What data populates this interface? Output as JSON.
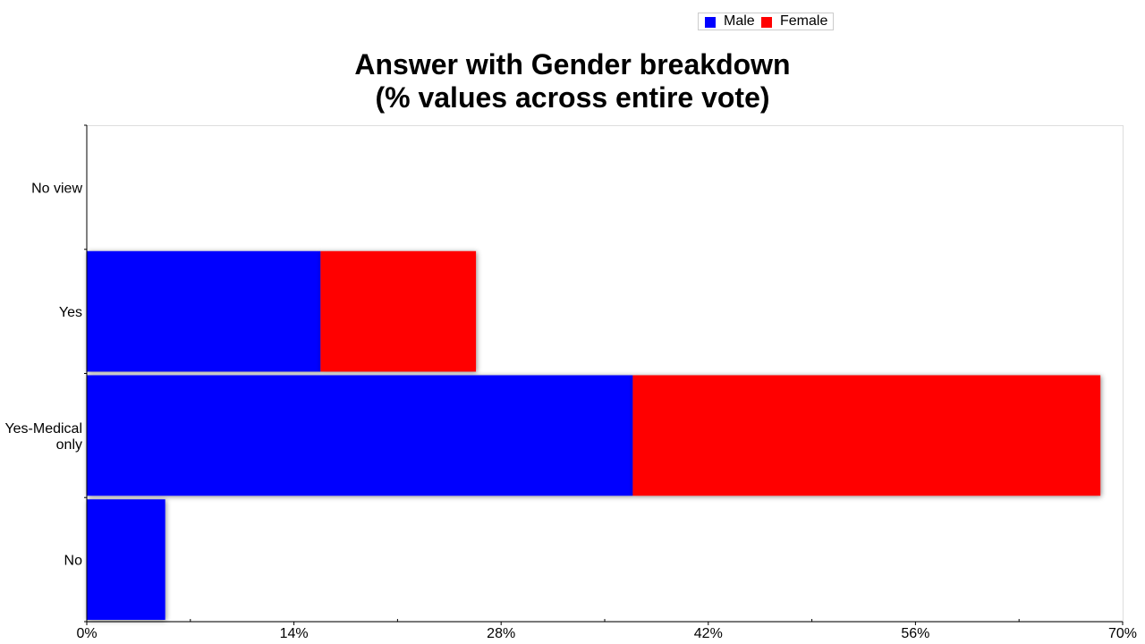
{
  "chart_data": {
    "type": "bar",
    "orientation": "horizontal",
    "stacked": true,
    "title_lines": [
      "Answer with Gender breakdown",
      "(% values across entire vote)"
    ],
    "categories": [
      "No view",
      "Yes",
      "Yes-Medical only",
      "No"
    ],
    "category_label_lines": [
      [
        "No view"
      ],
      [
        "Yes"
      ],
      [
        "Yes-Medical",
        "only"
      ],
      [
        "No"
      ]
    ],
    "series": [
      {
        "name": "Male",
        "color": "#0000ff",
        "values": [
          0,
          15.8,
          36.9,
          5.3
        ]
      },
      {
        "name": "Female",
        "color": "#ff0000",
        "values": [
          0,
          10.5,
          31.6,
          0
        ]
      }
    ],
    "xlim": [
      0,
      70
    ],
    "x_ticks": [
      0,
      14,
      28,
      42,
      56,
      70
    ],
    "x_tick_labels": [
      "0%",
      "14%",
      "28%",
      "42%",
      "56%",
      "70%"
    ],
    "legend": {
      "position": "top-right",
      "items": [
        {
          "label": "Male",
          "color": "#0000ff"
        },
        {
          "label": "Female",
          "color": "#ff0000"
        }
      ]
    },
    "grid": false
  }
}
